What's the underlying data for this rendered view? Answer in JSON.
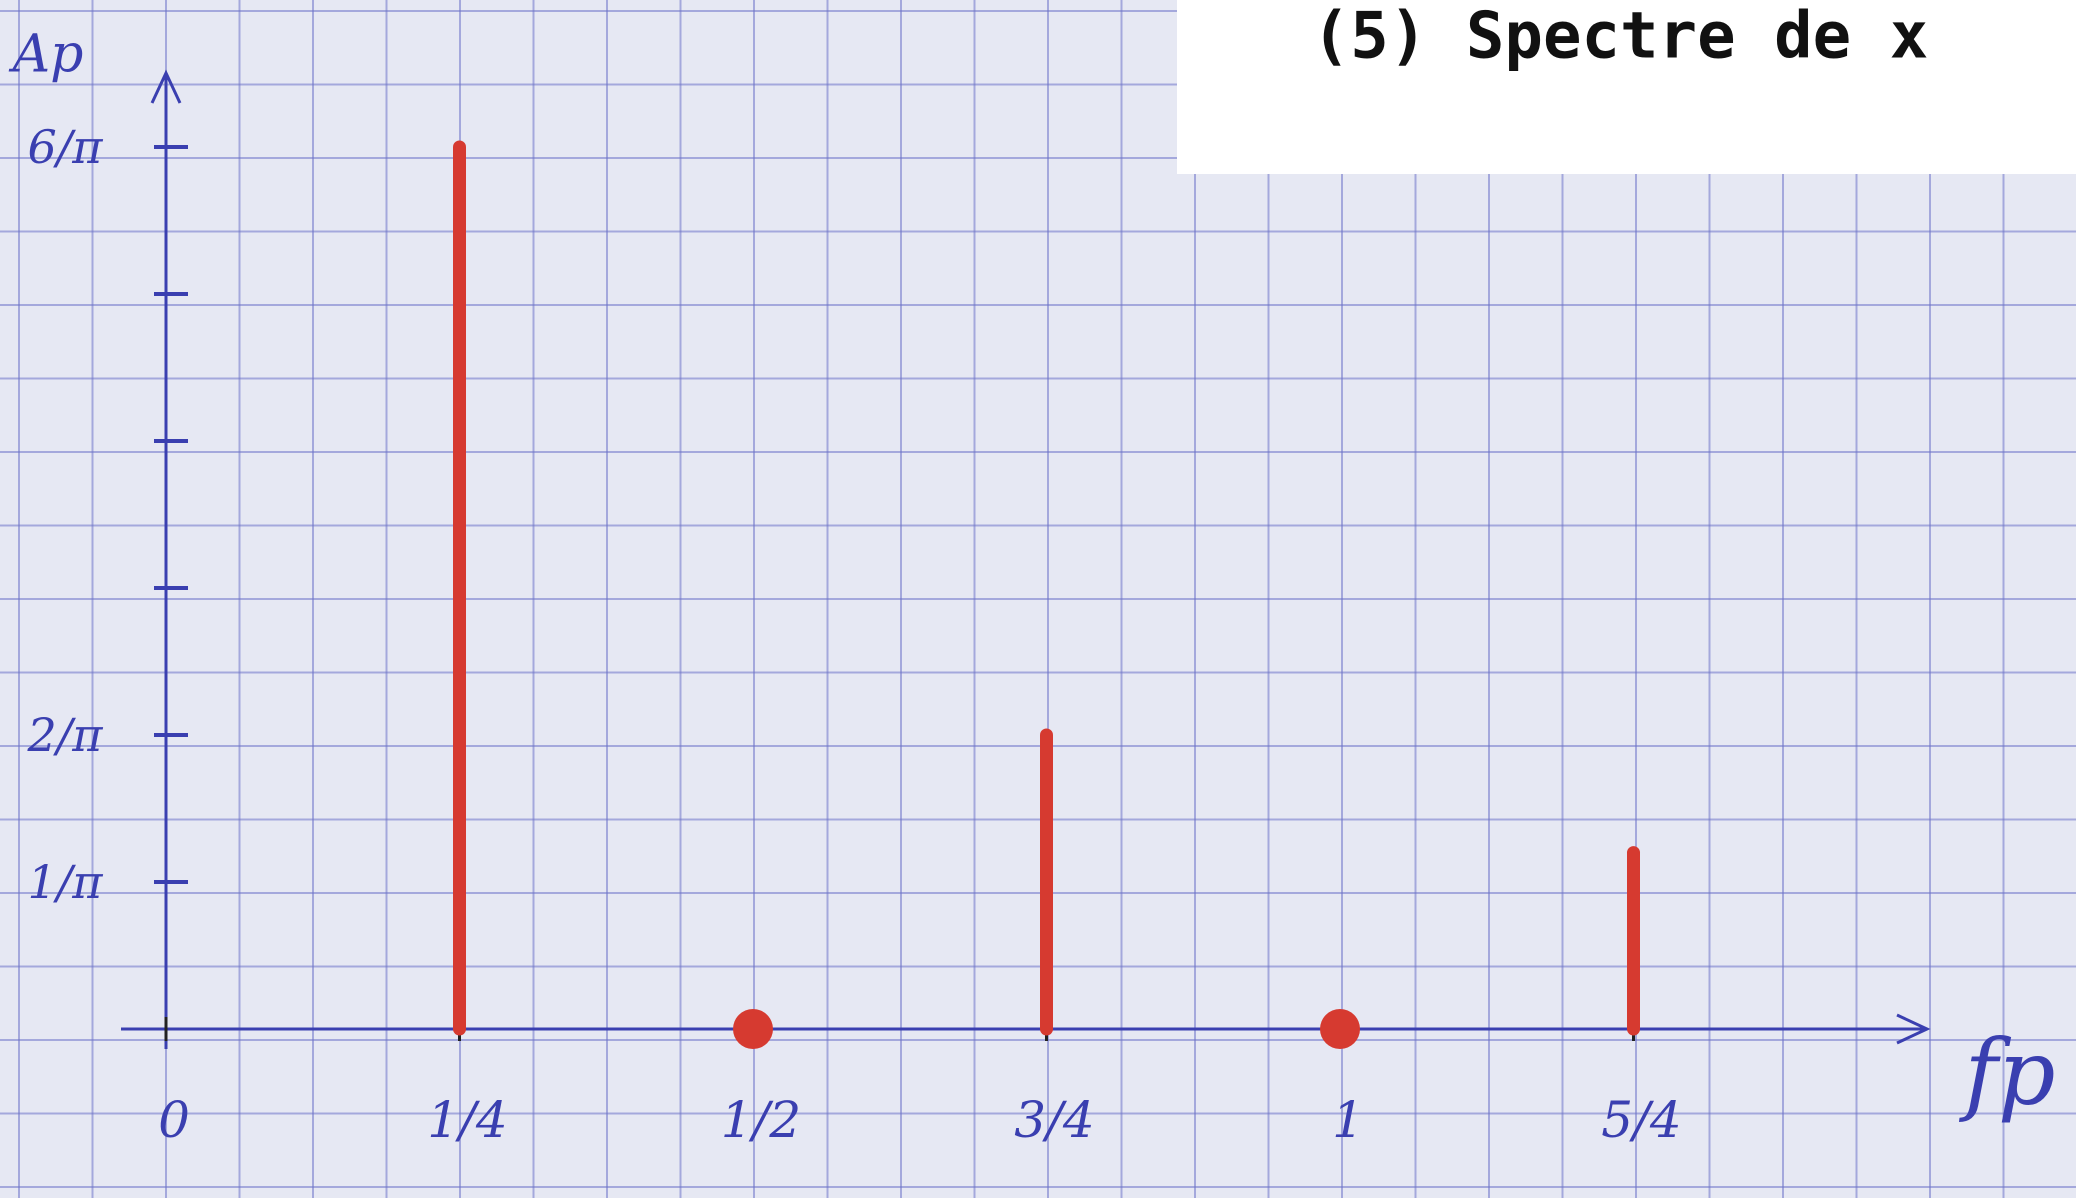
{
  "chart_data": {
    "type": "stem",
    "title": "(5) Spectre de x",
    "x_label": "fp",
    "y_label": "Ap",
    "x": [
      0.25,
      0.5,
      0.75,
      1,
      1.25
    ],
    "values": [
      1.9099,
      0,
      0.6366,
      0,
      0.382
    ],
    "color": "#d63a30",
    "axis_color": "#3a3fb0",
    "xlim": [
      0,
      1.5
    ],
    "ylim": [
      0,
      2.07
    ],
    "xticks": [
      {
        "value": 0,
        "label": "0"
      },
      {
        "value": 0.25,
        "label": "1/4"
      },
      {
        "value": 0.5,
        "label": "1/2"
      },
      {
        "value": 0.75,
        "label": "3/4"
      },
      {
        "value": 1,
        "label": "1"
      },
      {
        "value": 1.25,
        "label": "5/4"
      }
    ],
    "yticks": [
      {
        "value": 0.3183,
        "label": "1/π"
      },
      {
        "value": 0.6366,
        "label": "2/π"
      },
      {
        "value": 0.9549,
        "label": null
      },
      {
        "value": 1.2732,
        "label": null
      },
      {
        "value": 1.5915,
        "label": null
      },
      {
        "value": 1.9099,
        "label": "6/π"
      }
    ]
  }
}
